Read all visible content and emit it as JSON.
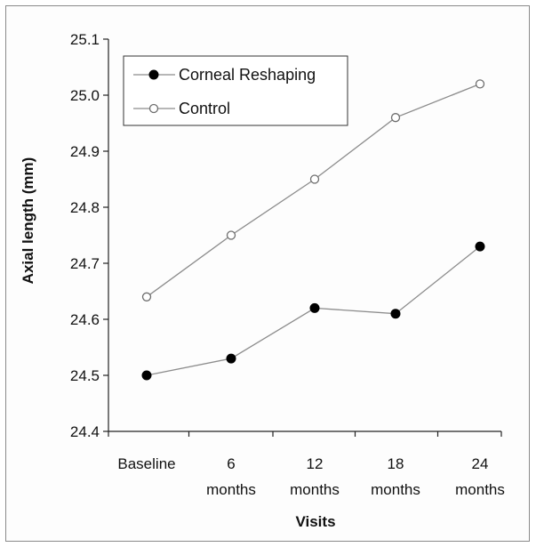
{
  "chart_data": {
    "type": "line",
    "title": "",
    "xlabel": "Visits",
    "ylabel": "Axial length (mm)",
    "ylim": [
      24.4,
      25.1
    ],
    "yticks": [
      "24.4",
      "24.5",
      "24.6",
      "24.7",
      "24.8",
      "24.9",
      "25.0",
      "25.1"
    ],
    "categories": [
      {
        "line1": "Baseline",
        "line2": ""
      },
      {
        "line1": "6",
        "line2": "months"
      },
      {
        "line1": "12",
        "line2": "months"
      },
      {
        "line1": "18",
        "line2": "months"
      },
      {
        "line1": "24",
        "line2": "months"
      }
    ],
    "series": [
      {
        "name": "Corneal Reshaping",
        "marker": "filled-circle",
        "color": "#000000",
        "line_color": "#8c8c8c",
        "values": [
          24.5,
          24.53,
          24.62,
          24.61,
          24.73
        ]
      },
      {
        "name": "Control",
        "marker": "open-circle",
        "color": "#6e6e6e",
        "line_color": "#8c8c8c",
        "values": [
          24.64,
          24.75,
          24.85,
          24.96,
          25.02
        ]
      }
    ],
    "grid": false,
    "legend_position": "top-left"
  }
}
